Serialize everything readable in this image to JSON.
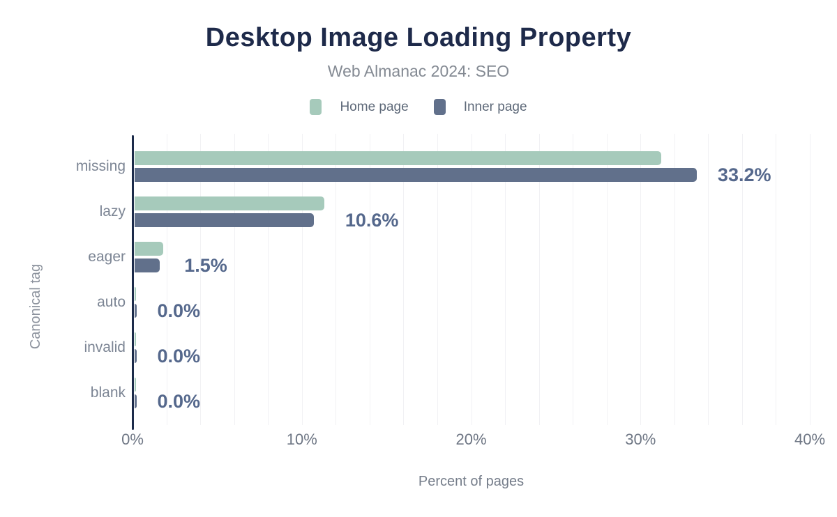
{
  "title": "Desktop Image Loading Property",
  "subtitle": "Web Almanac 2024: SEO",
  "legend": [
    {
      "label": "Home page",
      "color": "#a6cabb"
    },
    {
      "label": "Inner page",
      "color": "#61708b"
    }
  ],
  "chart_data": {
    "type": "bar",
    "orientation": "horizontal",
    "title": "Desktop Image Loading Property",
    "subtitle": "Web Almanac 2024: SEO",
    "categories": [
      "missing",
      "lazy",
      "eager",
      "auto",
      "invalid",
      "blank"
    ],
    "series": [
      {
        "name": "Home page",
        "color": "#a6cabb",
        "values": [
          31.1,
          11.2,
          1.7,
          0.0,
          0.0,
          0.0
        ]
      },
      {
        "name": "Inner page",
        "color": "#61708b",
        "values": [
          33.2,
          10.6,
          1.5,
          0.0,
          0.0,
          0.0
        ]
      }
    ],
    "data_labels": [
      "33.2%",
      "10.6%",
      "1.5%",
      "0.0%",
      "0.0%",
      "0.0%"
    ],
    "data_labels_series": "Inner page",
    "xlabel": "Percent of pages",
    "ylabel": "Canonical tag",
    "xlim": [
      0,
      40
    ],
    "xticks": [
      0,
      10,
      20,
      30,
      40
    ],
    "xtick_labels": [
      "0%",
      "10%",
      "20%",
      "30%",
      "40%"
    ],
    "grid": "vertical",
    "grid_step_pct": 2,
    "legend_position": "top"
  },
  "colors": {
    "title": "#1e2a4a",
    "subtitle": "#848a93",
    "axis_line": "#1c2b4a",
    "gridline": "#f1f1f4",
    "category_label": "#7c8594",
    "tick_label": "#6e7684",
    "data_label": "#55688c",
    "home_page_bar": "#a6cabb",
    "inner_page_bar": "#61708b",
    "background": "#ffffff"
  }
}
